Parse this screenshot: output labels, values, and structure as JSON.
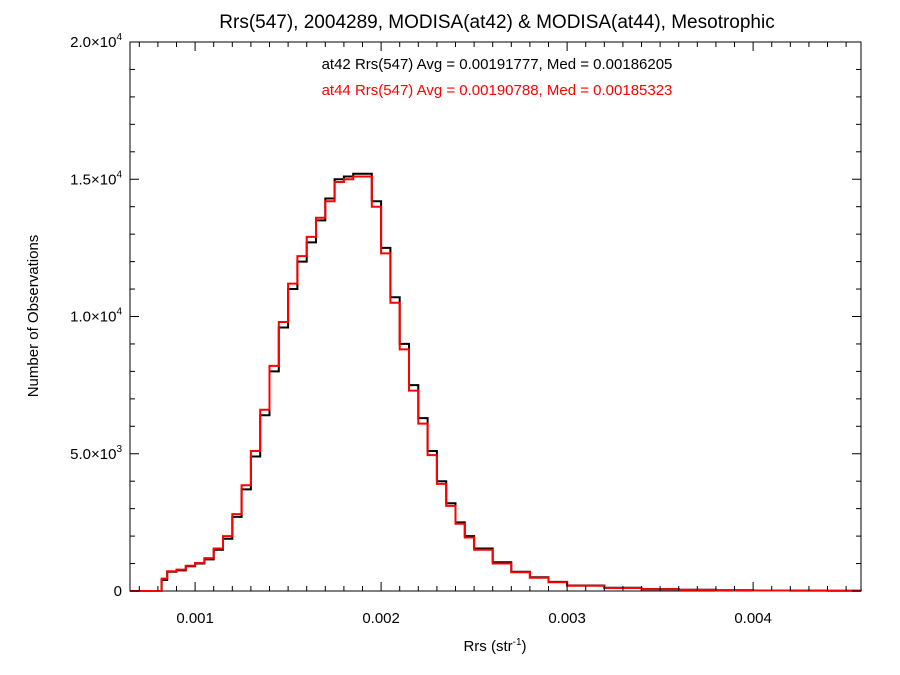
{
  "chart_data": {
    "type": "line",
    "title": "Rrs(547), 2004289, MODISA(at42) & MODISA(at44), Mesotrophic",
    "xlabel": {
      "base": "Rrs (str",
      "sup": "-1",
      "close": ")"
    },
    "ylabel": "Number of Observations",
    "xlim": [
      0.00065,
      0.00458
    ],
    "ylim": [
      0,
      20000
    ],
    "x_ticks": [
      {
        "value": 0.001,
        "label": "0.001"
      },
      {
        "value": 0.002,
        "label": "0.002"
      },
      {
        "value": 0.003,
        "label": "0.003"
      },
      {
        "value": 0.004,
        "label": "0.004"
      }
    ],
    "y_ticks": [
      {
        "value": 0,
        "mant": "0",
        "exp": ""
      },
      {
        "value": 5000,
        "mant": "5.0×10",
        "exp": "3"
      },
      {
        "value": 10000,
        "mant": "1.0×10",
        "exp": "4"
      },
      {
        "value": 15000,
        "mant": "1.5×10",
        "exp": "4"
      },
      {
        "value": 20000,
        "mant": "2.0×10",
        "exp": "4"
      }
    ],
    "step": true,
    "grid": false,
    "annotations": [
      {
        "text": "at42 Rrs(547) Avg = 0.00191777, Med = 0.00186205",
        "color": "#000000"
      },
      {
        "text": "at44 Rrs(547) Avg = 0.00190788, Med = 0.00185323",
        "color": "#ff0000"
      }
    ],
    "series": [
      {
        "name": "at42",
        "color": "#000000",
        "x": [
          0.00065,
          0.0008,
          0.00082,
          0.00085,
          0.0009,
          0.00095,
          0.001,
          0.00105,
          0.0011,
          0.00115,
          0.0012,
          0.00125,
          0.0013,
          0.00135,
          0.0014,
          0.00145,
          0.0015,
          0.00155,
          0.0016,
          0.00165,
          0.0017,
          0.00175,
          0.0018,
          0.00185,
          0.0019,
          0.00195,
          0.002,
          0.00205,
          0.0021,
          0.00215,
          0.0022,
          0.00225,
          0.0023,
          0.00235,
          0.0024,
          0.00245,
          0.0025,
          0.0026,
          0.0027,
          0.0028,
          0.0029,
          0.003,
          0.0032,
          0.0034,
          0.0036,
          0.0038,
          0.004,
          0.0042,
          0.0044,
          0.00458
        ],
        "y": [
          0,
          0,
          400,
          700,
          750,
          900,
          1000,
          1150,
          1500,
          1900,
          2700,
          3700,
          4900,
          6400,
          8000,
          9600,
          11000,
          12000,
          12700,
          13500,
          14300,
          15000,
          15100,
          15200,
          15200,
          14200,
          12500,
          10700,
          9000,
          7500,
          6300,
          5100,
          4000,
          3200,
          2500,
          2000,
          1550,
          1050,
          700,
          500,
          330,
          200,
          120,
          70,
          45,
          30,
          20,
          15,
          10,
          5
        ]
      },
      {
        "name": "at44",
        "color": "#ff0000",
        "x": [
          0.00065,
          0.0008,
          0.00082,
          0.00085,
          0.0009,
          0.00095,
          0.001,
          0.00105,
          0.0011,
          0.00115,
          0.0012,
          0.00125,
          0.0013,
          0.00135,
          0.0014,
          0.00145,
          0.0015,
          0.00155,
          0.0016,
          0.00165,
          0.0017,
          0.00175,
          0.0018,
          0.00185,
          0.0019,
          0.00195,
          0.002,
          0.00205,
          0.0021,
          0.00215,
          0.0022,
          0.00225,
          0.0023,
          0.00235,
          0.0024,
          0.00245,
          0.0025,
          0.0026,
          0.0027,
          0.0028,
          0.0029,
          0.003,
          0.0032,
          0.0034,
          0.0036,
          0.0038,
          0.004,
          0.0042,
          0.0044,
          0.00458
        ],
        "y": [
          0,
          0,
          450,
          720,
          780,
          920,
          1020,
          1200,
          1550,
          2000,
          2800,
          3850,
          5100,
          6600,
          8200,
          9800,
          11200,
          12200,
          12900,
          13600,
          14200,
          14900,
          15000,
          15100,
          15100,
          14000,
          12300,
          10500,
          8800,
          7300,
          6100,
          4950,
          3900,
          3100,
          2450,
          1950,
          1500,
          1000,
          680,
          480,
          320,
          190,
          110,
          65,
          40,
          28,
          18,
          13,
          9,
          5
        ]
      }
    ]
  }
}
